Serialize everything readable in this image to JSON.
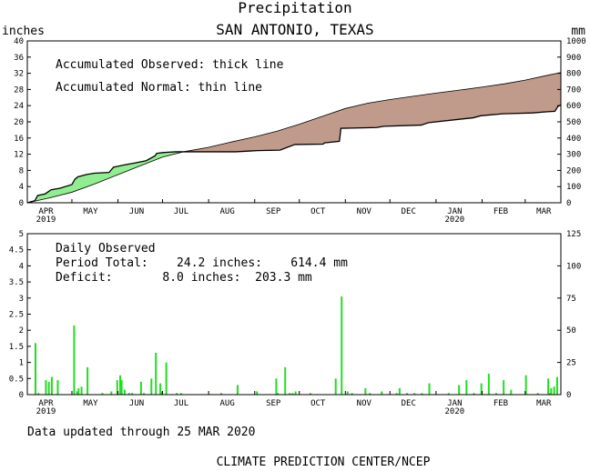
{
  "title": "Precipitation",
  "subtitle": "SAN ANTONIO, TEXAS",
  "left_unit": "inches",
  "right_unit": "mm",
  "legend": {
    "observed": "Accumulated Observed: thick line",
    "normal": "Accumulated Normal: thin line"
  },
  "daily": {
    "heading": "Daily Observed",
    "period_total": "Period Total:    24.2 inches:    614.4 mm",
    "deficit": "Deficit:       8.0 inches:  203.3 mm"
  },
  "updated": "Data updated through 25 MAR 2020",
  "footer": "CLIMATE PREDICTION CENTER/NCEP",
  "colors": {
    "surplus": "#90ee90",
    "deficit": "#c09a8a",
    "bars": "#22dd22"
  },
  "chart_data": [
    {
      "type": "area",
      "title": "Precipitation",
      "ylabel": "inches",
      "y2label": "mm",
      "ylim": [
        0,
        40
      ],
      "yticks": [
        0,
        4,
        8,
        12,
        16,
        20,
        24,
        28,
        32,
        36,
        40
      ],
      "y2ticks": [
        0,
        100,
        200,
        300,
        400,
        500,
        600,
        700,
        800,
        900,
        1000
      ],
      "xlim": [
        0,
        359
      ],
      "x_unit": "day of period starting 1 APR 2019",
      "month_ticks": [
        {
          "label": "APR",
          "day": 0,
          "year": "2019"
        },
        {
          "label": "MAY",
          "day": 30
        },
        {
          "label": "JUN",
          "day": 61
        },
        {
          "label": "JUL",
          "day": 91
        },
        {
          "label": "AUG",
          "day": 122
        },
        {
          "label": "SEP",
          "day": 153
        },
        {
          "label": "OCT",
          "day": 183
        },
        {
          "label": "NOV",
          "day": 214
        },
        {
          "label": "DEC",
          "day": 244
        },
        {
          "label": "JAN",
          "day": 275,
          "year": "2020"
        },
        {
          "label": "FEB",
          "day": 306
        },
        {
          "label": "MAR",
          "day": 335
        }
      ],
      "series": [
        {
          "name": "Accumulated Observed",
          "x": [
            0,
            5,
            7,
            12,
            16,
            22,
            30,
            32,
            34,
            40,
            45,
            55,
            58,
            66,
            72,
            80,
            86,
            87,
            91,
            95,
            100,
            140,
            150,
            155,
            170,
            180,
            199,
            200,
            210,
            211,
            235,
            240,
            265,
            270,
            300,
            305,
            320,
            340,
            350,
            355,
            357,
            359
          ],
          "y": [
            0,
            0.5,
            1.8,
            2.2,
            3.2,
            3.6,
            4.5,
            5.8,
            6.4,
            7.0,
            7.3,
            7.5,
            8.8,
            9.4,
            9.8,
            10.4,
            11.6,
            12.2,
            12.4,
            12.5,
            12.6,
            12.6,
            12.8,
            12.9,
            13.0,
            14.4,
            14.5,
            14.8,
            15.2,
            18.4,
            18.6,
            18.9,
            19.2,
            19.8,
            21.0,
            21.5,
            22.0,
            22.2,
            22.5,
            22.6,
            23.8,
            24.2
          ]
        },
        {
          "name": "Accumulated Normal",
          "x": [
            0,
            15,
            30,
            45,
            60,
            75,
            91,
            105,
            122,
            137,
            153,
            168,
            183,
            198,
            214,
            229,
            244,
            259,
            275,
            290,
            306,
            321,
            335,
            350,
            359
          ],
          "y": [
            0.0,
            1.2,
            2.6,
            4.6,
            6.8,
            9.0,
            11.3,
            12.6,
            13.7,
            15.0,
            16.3,
            17.7,
            19.4,
            21.3,
            23.3,
            24.6,
            25.5,
            26.3,
            27.1,
            27.8,
            28.6,
            29.4,
            30.3,
            31.5,
            32.2
          ]
        }
      ]
    },
    {
      "type": "bar",
      "title": "Daily Observed",
      "ylim": [
        0,
        5
      ],
      "yticks": [
        0,
        0.5,
        1,
        1.5,
        2,
        2.5,
        3,
        3.5,
        4,
        4.5,
        5
      ],
      "y2label": "mm",
      "y2ticks": [
        0,
        25,
        50,
        75,
        100,
        125
      ],
      "x_unit": "day of period starting 1 APR 2019",
      "x": [
        5,
        7,
        12,
        14,
        16,
        20,
        31,
        33,
        34,
        36,
        40,
        50,
        56,
        60,
        62,
        63,
        65,
        68,
        70,
        76,
        78,
        83,
        86,
        89,
        90,
        93,
        100,
        103,
        130,
        141,
        154,
        167,
        168,
        173,
        176,
        178,
        180,
        190,
        207,
        211,
        215,
        218,
        227,
        230,
        238,
        248,
        250,
        255,
        260,
        265,
        270,
        283,
        290,
        295,
        300,
        305,
        310,
        315,
        320,
        325,
        335,
        343,
        350,
        351,
        352,
        354,
        356
      ],
      "values": [
        1.6,
        0.05,
        0.45,
        0.4,
        0.55,
        0.45,
        2.15,
        0.1,
        0.2,
        0.25,
        0.85,
        0.05,
        0.1,
        0.45,
        0.6,
        0.45,
        0.15,
        0.05,
        0.05,
        0.4,
        0.05,
        0.5,
        1.3,
        0.35,
        0.1,
        1.0,
        0.05,
        0.05,
        0.05,
        0.3,
        0.1,
        0.5,
        0.05,
        0.85,
        0.05,
        0.05,
        0.1,
        0.05,
        0.5,
        3.05,
        0.1,
        0.05,
        0.2,
        0.05,
        0.1,
        0.05,
        0.2,
        0.05,
        0.05,
        0.05,
        0.35,
        0.05,
        0.3,
        0.45,
        0.05,
        0.35,
        0.65,
        0.05,
        0.45,
        0.15,
        0.6,
        0.05,
        0.5,
        0.05,
        0.2,
        0.25,
        0.55
      ]
    }
  ]
}
